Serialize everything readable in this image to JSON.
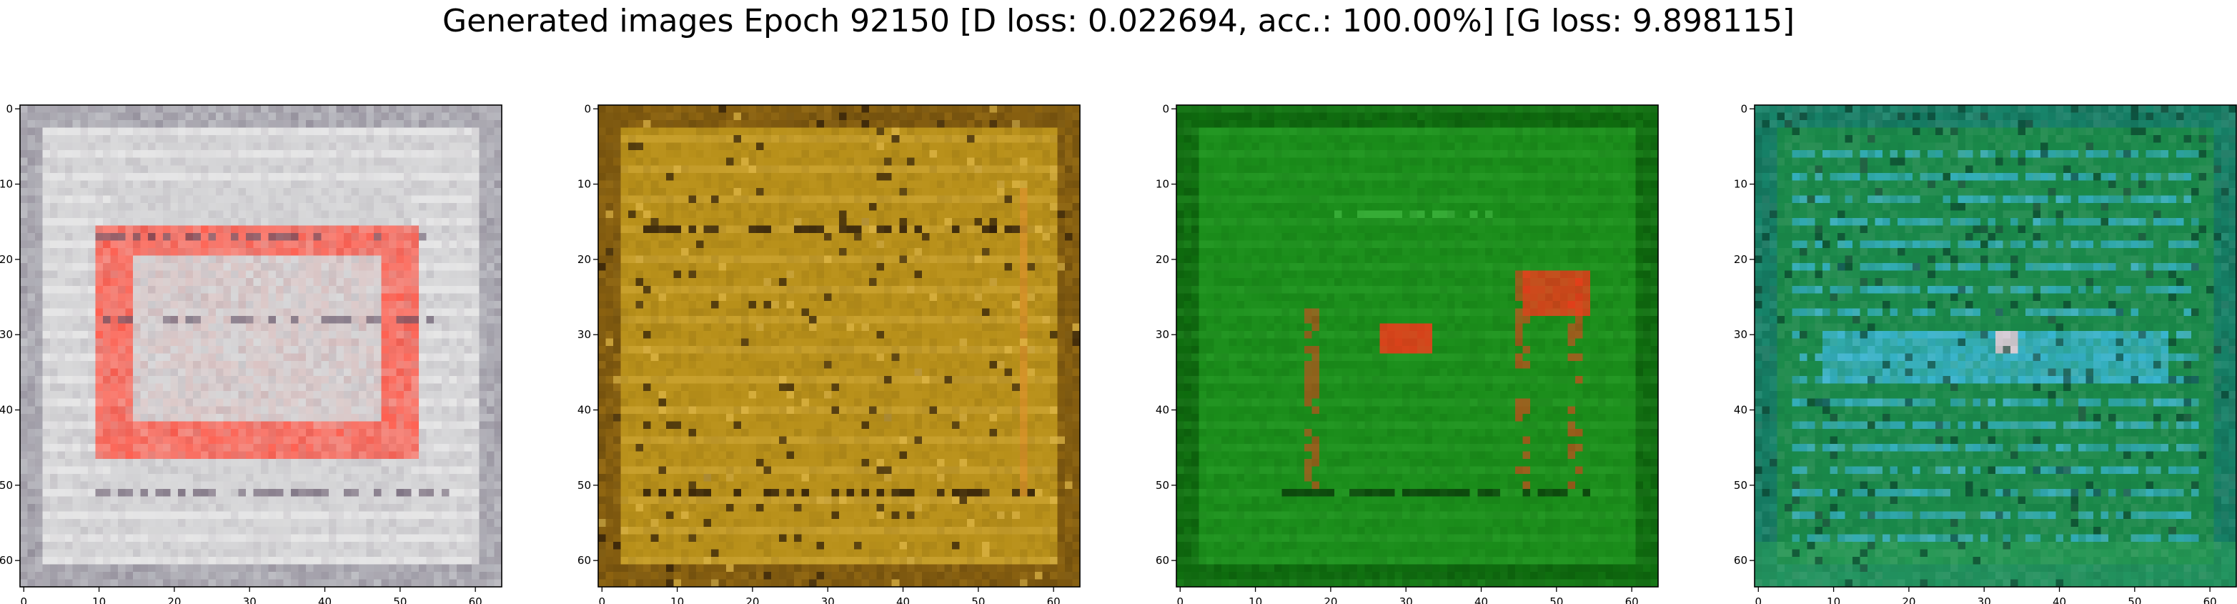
{
  "figure": {
    "title": "Generated images Epoch 92150 [D loss: 0.022694, acc.: 100.00%] [G loss: 9.898115]"
  },
  "chart_data": [
    {
      "type": "heatmap",
      "title": "",
      "xlabel": "",
      "ylabel": "",
      "xlim": [
        0,
        63
      ],
      "ylim": [
        63,
        0
      ],
      "x_ticks": [
        "0",
        "10",
        "20",
        "30",
        "40",
        "50",
        "60"
      ],
      "y_ticks": [
        "0",
        "10",
        "20",
        "30",
        "40",
        "50",
        "60"
      ],
      "grid": false,
      "palette": {
        "background": "#d3d3d5",
        "border": "#c4c8cc",
        "accent": "#ff5a4a",
        "dark": "#4a3850",
        "light": "#eeeeee"
      }
    },
    {
      "type": "heatmap",
      "title": "",
      "xlabel": "",
      "ylabel": "",
      "xlim": [
        0,
        63
      ],
      "ylim": [
        63,
        0
      ],
      "x_ticks": [
        "0",
        "10",
        "20",
        "30",
        "40",
        "50",
        "60"
      ],
      "y_ticks": [
        "0",
        "10",
        "20",
        "30",
        "40",
        "50",
        "60"
      ],
      "grid": false,
      "palette": {
        "background": "#b8901a",
        "border": "#a07212",
        "accent": "#d89028",
        "dark": "#2a1a08",
        "light": "#e0b848"
      }
    },
    {
      "type": "heatmap",
      "title": "",
      "xlabel": "",
      "ylabel": "",
      "xlim": [
        0,
        63
      ],
      "ylim": [
        63,
        0
      ],
      "x_ticks": [
        "0",
        "10",
        "20",
        "30",
        "40",
        "50",
        "60"
      ],
      "y_ticks": [
        "0",
        "10",
        "20",
        "30",
        "40",
        "50",
        "60"
      ],
      "grid": false,
      "palette": {
        "background": "#1a8c1a",
        "border": "#107810",
        "accent": "#ee3a1a",
        "dark": "#083808",
        "light": "#48c048"
      }
    },
    {
      "type": "heatmap",
      "title": "",
      "xlabel": "",
      "ylabel": "",
      "xlim": [
        0,
        63
      ],
      "ylim": [
        63,
        0
      ],
      "x_ticks": [
        "0",
        "10",
        "20",
        "30",
        "40",
        "50",
        "60"
      ],
      "y_ticks": [
        "0",
        "10",
        "20",
        "30",
        "40",
        "50",
        "60"
      ],
      "grid": false,
      "palette": {
        "background": "#1a8a4a",
        "border": "#1a9478",
        "accent": "#3ab8d8",
        "dark": "#083828",
        "light": "#e8d0d8"
      }
    }
  ]
}
